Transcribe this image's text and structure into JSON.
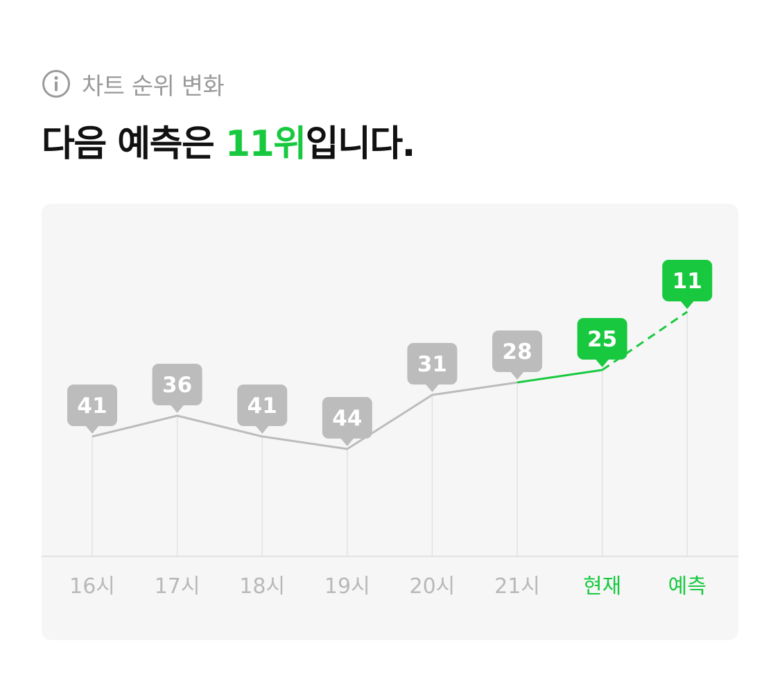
{
  "header": {
    "subtitle": "차트 순위 변화",
    "headline_prefix": "다음 예측은 ",
    "headline_accent": "11위",
    "headline_suffix": "입니다."
  },
  "colors": {
    "accent": "#18c93f",
    "muted": "#bcbcbc",
    "card_bg": "#f6f6f6"
  },
  "icons": {
    "info": "info-icon"
  },
  "chart_data": {
    "type": "line",
    "categories": [
      "16시",
      "17시",
      "18시",
      "19시",
      "20시",
      "21시",
      "현재",
      "예측"
    ],
    "values": [
      41,
      36,
      41,
      44,
      31,
      28,
      25,
      11
    ],
    "data_labels": [
      "41",
      "36",
      "41",
      "44",
      "31",
      "28",
      "25",
      "11"
    ],
    "highlighted_categories": [
      "현재",
      "예측"
    ],
    "current_index": 6,
    "predicted_index": 7,
    "y_axis": "rank (reversed: lower rank drawn higher)",
    "grid": "vertical lines at each category"
  }
}
